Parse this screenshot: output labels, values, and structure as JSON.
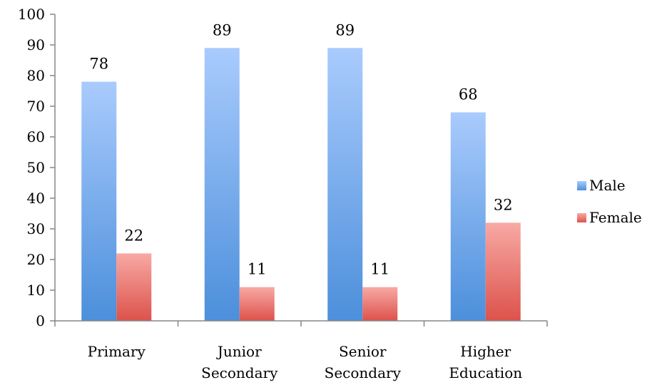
{
  "chart_data": {
    "type": "bar",
    "categories": [
      [
        "Primary"
      ],
      [
        "Junior",
        "Secondary"
      ],
      [
        "Senior",
        "Secondary"
      ],
      [
        "Higher",
        "Education"
      ]
    ],
    "series": [
      {
        "name": "Male",
        "values": [
          78,
          89,
          89,
          68
        ],
        "color_top": "#a9cbfd",
        "color_bottom": "#4c8fdb"
      },
      {
        "name": "Female",
        "values": [
          22,
          11,
          11,
          32
        ],
        "color_top": "#f8a9a4",
        "color_bottom": "#dc524b"
      }
    ],
    "ylim": [
      0,
      100
    ],
    "yticks": [
      0,
      10,
      20,
      30,
      40,
      50,
      60,
      70,
      80,
      90,
      100
    ],
    "data_labels": true,
    "grid": false,
    "legend": "right",
    "title": "",
    "xlabel": "",
    "ylabel": ""
  }
}
